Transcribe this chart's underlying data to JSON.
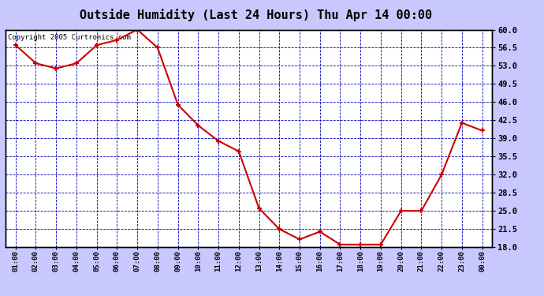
{
  "title": "Outside Humidity (Last 24 Hours) Thu Apr 14 00:00",
  "copyright": "Copyright 2005 Curtronics.com",
  "x_labels": [
    "01:00",
    "02:00",
    "03:00",
    "04:00",
    "05:00",
    "06:00",
    "07:00",
    "08:00",
    "09:00",
    "10:00",
    "11:00",
    "12:00",
    "13:00",
    "14:00",
    "15:00",
    "16:00",
    "17:00",
    "18:00",
    "19:00",
    "20:00",
    "21:00",
    "22:00",
    "23:00",
    "00:00"
  ],
  "y_values": [
    57.0,
    53.5,
    52.5,
    53.5,
    57.0,
    58.0,
    60.0,
    56.5,
    45.5,
    41.5,
    38.5,
    36.5,
    25.5,
    21.5,
    19.5,
    21.0,
    18.5,
    18.5,
    18.5,
    25.0,
    25.0,
    32.0,
    42.0,
    40.5
  ],
  "line_color": "#cc0000",
  "marker_color": "#cc0000",
  "bg_color": "#c8c8ff",
  "plot_bg_color": "#ffffff",
  "grid_color": "#0000bb",
  "title_color": "#000000",
  "border_color": "#000000",
  "y_min": 18.0,
  "y_max": 60.0,
  "y_ticks": [
    18.0,
    21.5,
    25.0,
    28.5,
    32.0,
    35.5,
    39.0,
    42.5,
    46.0,
    49.5,
    53.0,
    56.5,
    60.0
  ],
  "title_fontsize": 11,
  "copyright_fontsize": 6.5
}
